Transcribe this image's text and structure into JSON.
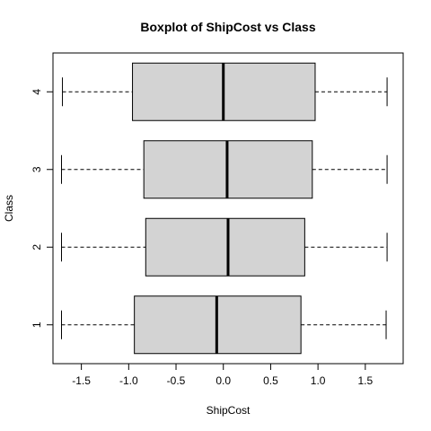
{
  "chart_data": {
    "type": "boxplot",
    "orientation": "horizontal",
    "title": "Boxplot of ShipCost vs Class",
    "xlabel": "ShipCost",
    "ylabel": "Class",
    "xlim": [
      -1.8,
      1.9
    ],
    "xticks": [
      -1.5,
      -1.0,
      -0.5,
      0.0,
      0.5,
      1.0,
      1.5
    ],
    "xtick_labels": [
      "-1.5",
      "-1.0",
      "-0.5",
      "0.0",
      "0.5",
      "1.0",
      "1.5"
    ],
    "box_fill": "#d3d3d3",
    "box_stroke": "#000000",
    "groups": [
      {
        "label": "1",
        "min": -1.71,
        "q1": -0.94,
        "median": -0.07,
        "q3": 0.82,
        "max": 1.72
      },
      {
        "label": "2",
        "min": -1.71,
        "q1": -0.82,
        "median": 0.05,
        "q3": 0.86,
        "max": 1.73
      },
      {
        "label": "3",
        "min": -1.71,
        "q1": -0.84,
        "median": 0.04,
        "q3": 0.94,
        "max": 1.73
      },
      {
        "label": "4",
        "min": -1.7,
        "q1": -0.96,
        "median": 0.0,
        "q3": 0.97,
        "max": 1.73
      }
    ]
  }
}
